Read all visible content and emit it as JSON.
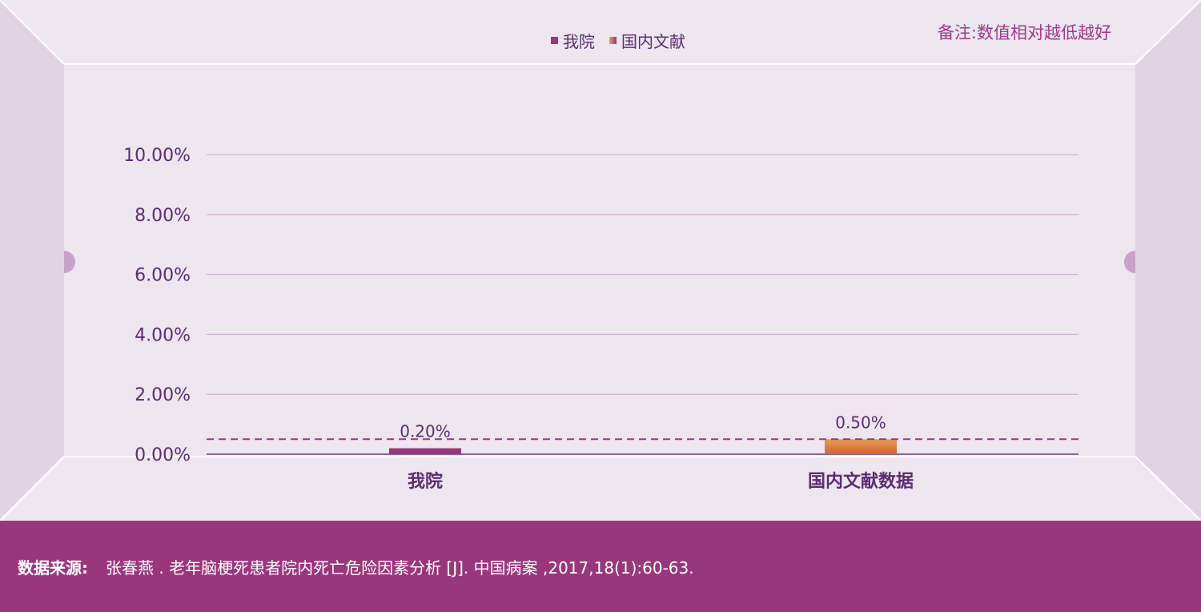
{
  "legend": [
    {
      "label": "我院",
      "color": "#99377c"
    },
    {
      "label": "国内文献",
      "color": "#e07a33"
    }
  ],
  "note": "备注:数值相对越低越好",
  "footer": {
    "label": "数据来源:",
    "text": "张春燕 . 老年脑梗死患者院内死亡危险因素分析 [J]. 中国病案 ,2017,18(1):60-63."
  },
  "chart_data": {
    "type": "bar",
    "categories": [
      "我院",
      "国内文献数据"
    ],
    "values": [
      0.2,
      0.5
    ],
    "value_labels": [
      "0.20%",
      "0.50%"
    ],
    "bar_colors": [
      "#99377c",
      "#e07a33"
    ],
    "reference_line": 0.5,
    "ylim": [
      0,
      10
    ],
    "yticks": [
      0,
      2,
      4,
      6,
      8,
      10
    ],
    "ytick_labels": [
      "0.00%",
      "2.00%",
      "4.00%",
      "6.00%",
      "8.00%",
      "10.00%"
    ],
    "grid": true
  }
}
